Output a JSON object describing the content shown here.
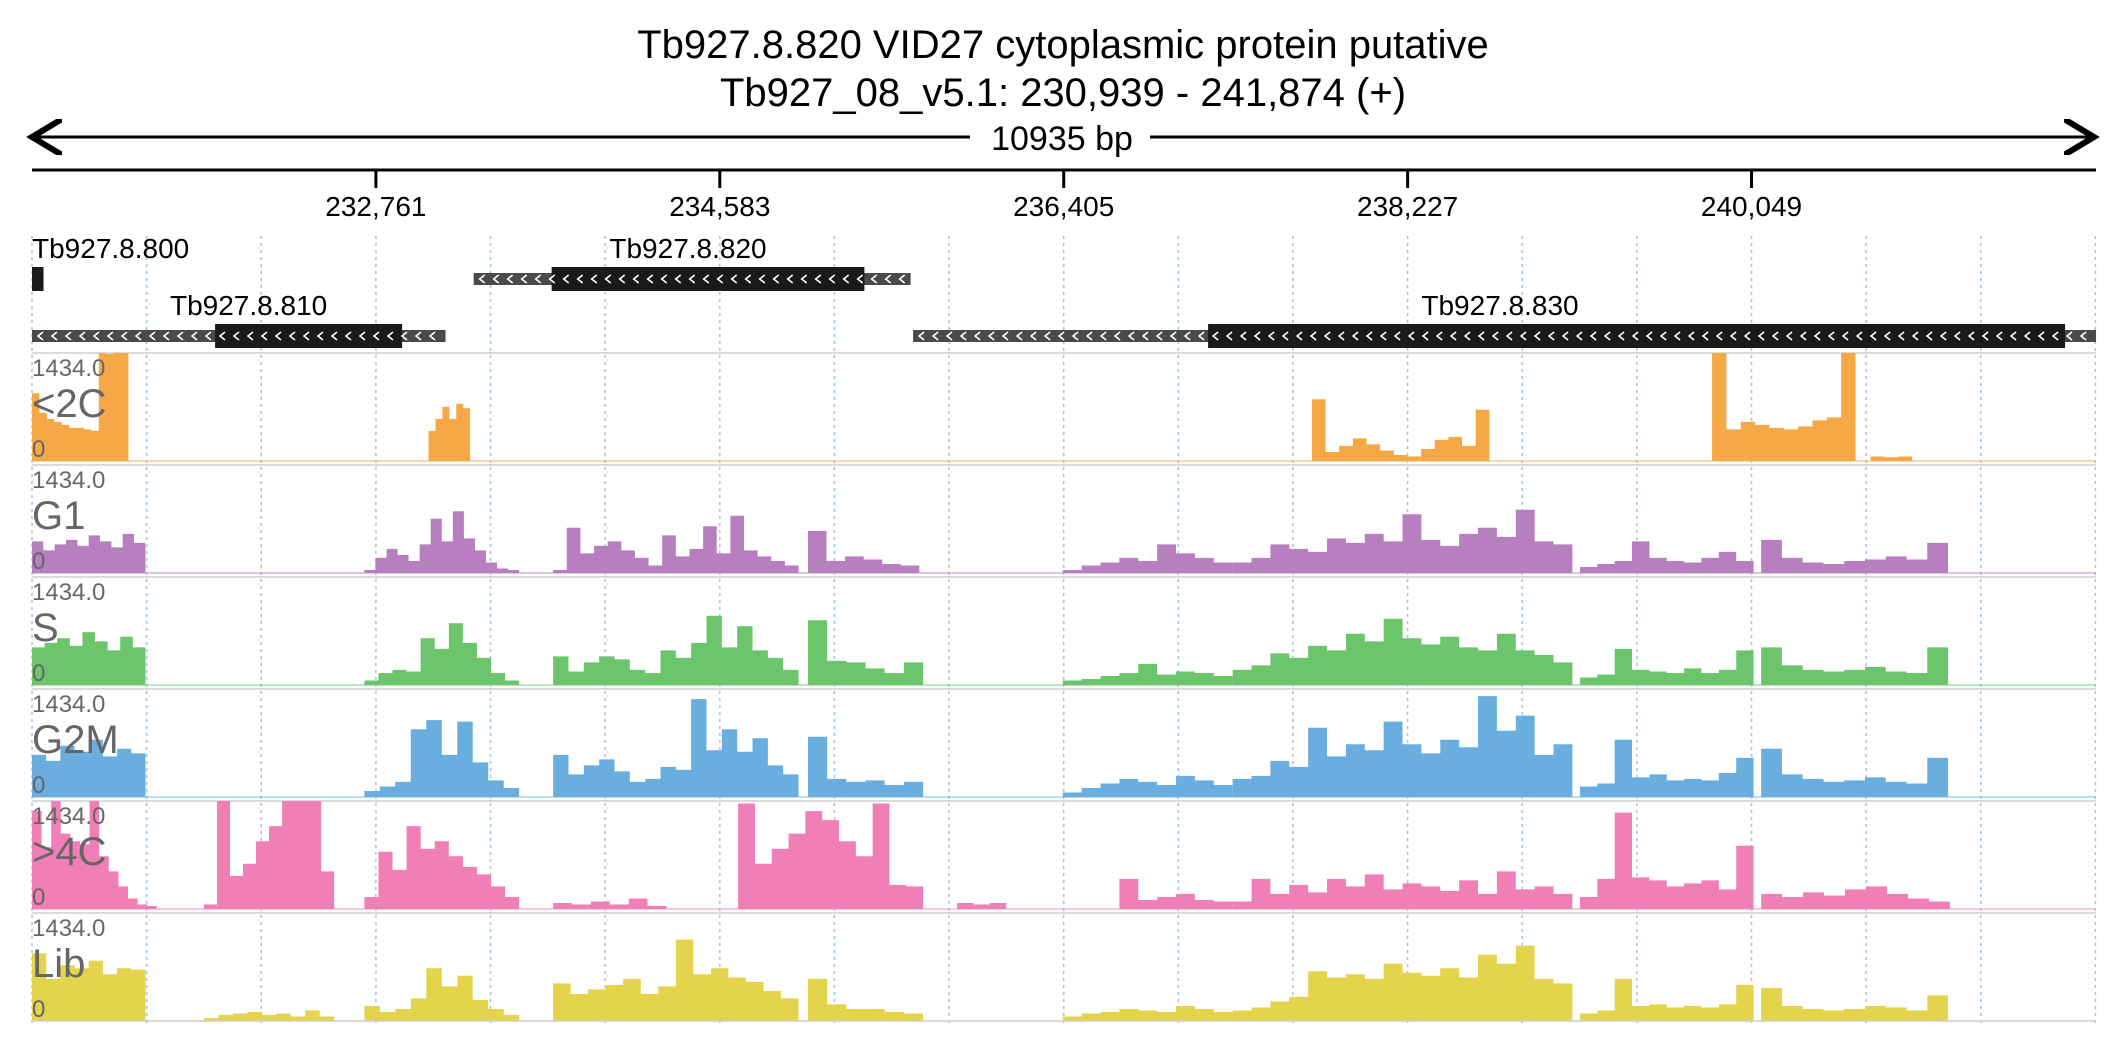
{
  "title_line1": "Tb927.8.820  VID27 cytoplasmic protein  putative",
  "title_line2": "Tb927_08_v5.1: 230,939 - 241,874 (+)",
  "span_label": "10935 bp",
  "colors": {
    "axis": "#000000",
    "grid": "#9fc3e8",
    "gene_utr": "#4a4a4a",
    "gene_cds": "#1a1a1a",
    "track_label": "#666666",
    "separator": "#cfcfcf"
  },
  "chart_data": {
    "type": "area",
    "genome": {
      "start": 230939,
      "end": 241874,
      "strand": "+",
      "ticks": [
        232761,
        234583,
        236405,
        238227,
        240049
      ],
      "tick_labels": [
        "232,761",
        "234,583",
        "236,405",
        "238,227",
        "240,049"
      ]
    },
    "genes": [
      {
        "id": "Tb927.8.800",
        "row": 0,
        "start": 230939,
        "end": 231000,
        "cds_start": 230939,
        "cds_end": 231000,
        "strand": "-"
      },
      {
        "id": "Tb927.8.820",
        "row": 0,
        "start": 233279,
        "end": 235594,
        "cds_start": 233692,
        "cds_end": 235349,
        "strand": "-"
      },
      {
        "id": "Tb927.8.810",
        "row": 1,
        "start": 230939,
        "end": 233130,
        "cds_start": 231909,
        "cds_end": 232900,
        "strand": "-"
      },
      {
        "id": "Tb927.8.830",
        "row": 1,
        "start": 235607,
        "end": 241874,
        "cds_start": 237170,
        "cds_end": 241710,
        "strand": "-"
      }
    ],
    "y_max_label": "1434.0",
    "y_min_label": "0",
    "ylim": [
      0,
      1434
    ],
    "tracks": [
      {
        "name": "<2C",
        "color": "#f5a845",
        "segments": [
          {
            "start": 230939,
            "end": 231450,
            "values": [
              900,
              640,
              560,
              520,
              480,
              440,
              440,
              420,
              400,
              1434,
              1420,
              1434,
              1434
            ]
          },
          {
            "start": 233040,
            "end": 233260,
            "values": [
              400,
              560,
              720,
              560,
              760,
              700
            ]
          },
          {
            "start": 237720,
            "end": 238660,
            "values": [
              820,
              120,
              200,
              300,
              220,
              140,
              80,
              60,
              160,
              280,
              320,
              200,
              680
            ]
          },
          {
            "start": 239840,
            "end": 240600,
            "values": [
              1434,
              420,
              520,
              480,
              440,
              420,
              460,
              540,
              580,
              1434
            ]
          },
          {
            "start": 240680,
            "end": 240900,
            "values": [
              60,
              50,
              60
            ]
          }
        ]
      },
      {
        "name": "G1",
        "color": "#b77fbf",
        "segments": [
          {
            "start": 230939,
            "end": 231540,
            "values": [
              420,
              300,
              380,
              440,
              360,
              500,
              420,
              340,
              520,
              400
            ]
          },
          {
            "start": 232700,
            "end": 233520,
            "values": [
              40,
              200,
              320,
              240,
              160,
              380,
              720,
              420,
              820,
              460,
              300,
              140,
              60,
              40
            ]
          },
          {
            "start": 233700,
            "end": 235000,
            "values": [
              40,
              600,
              260,
              360,
              420,
              300,
              200,
              100,
              500,
              220,
              320,
              620,
              260,
              760,
              300,
              220,
              160,
              100
            ]
          },
          {
            "start": 235050,
            "end": 235640,
            "values": [
              560,
              160,
              220,
              180,
              120,
              100
            ]
          },
          {
            "start": 236400,
            "end": 237300,
            "values": [
              40,
              100,
              140,
              200,
              160,
              380,
              260,
              200,
              140
            ]
          },
          {
            "start": 237300,
            "end": 239100,
            "values": [
              140,
              200,
              380,
              320,
              280,
              460,
              400,
              520,
              420,
              780,
              440,
              360,
              520,
              600,
              480,
              840,
              420,
              380
            ]
          },
          {
            "start": 239140,
            "end": 240060,
            "values": [
              80,
              120,
              160,
              420,
              200,
              160,
              140,
              200,
              280,
              160
            ]
          },
          {
            "start": 240100,
            "end": 241090,
            "values": [
              440,
              200,
              140,
              120,
              160,
              180,
              220,
              180,
              400
            ]
          }
        ]
      },
      {
        "name": "S",
        "color": "#6cc46c",
        "segments": [
          {
            "start": 230939,
            "end": 231540,
            "values": [
              500,
              560,
              620,
              520,
              700,
              580,
              460,
              640,
              500
            ]
          },
          {
            "start": 232700,
            "end": 233520,
            "values": [
              60,
              160,
              200,
              180,
              620,
              480,
              820,
              560,
              360,
              160,
              60
            ]
          },
          {
            "start": 233700,
            "end": 235000,
            "values": [
              380,
              180,
              300,
              380,
              340,
              200,
              160,
              460,
              360,
              560,
              920,
              500,
              780,
              460,
              360,
              200
            ]
          },
          {
            "start": 235050,
            "end": 235660,
            "values": [
              860,
              320,
              300,
              220,
              160,
              300
            ]
          },
          {
            "start": 236400,
            "end": 237300,
            "values": [
              60,
              80,
              120,
              160,
              280,
              140,
              180,
              160,
              120
            ]
          },
          {
            "start": 237300,
            "end": 239100,
            "values": [
              200,
              260,
              420,
              360,
              520,
              460,
              680,
              580,
              880,
              620,
              540,
              640,
              500,
              460,
              680,
              460,
              400,
              300
            ]
          },
          {
            "start": 239140,
            "end": 240060,
            "values": [
              100,
              140,
              480,
              200,
              180,
              160,
              220,
              160,
              200,
              460
            ]
          },
          {
            "start": 240100,
            "end": 241090,
            "values": [
              500,
              260,
              200,
              180,
              200,
              240,
              180,
              160,
              500
            ]
          }
        ]
      },
      {
        "name": "G2M",
        "color": "#6aaee0",
        "segments": [
          {
            "start": 230939,
            "end": 231540,
            "values": [
              560,
              480,
              680,
              600,
              760,
              540,
              640,
              580
            ]
          },
          {
            "start": 232700,
            "end": 233520,
            "values": [
              80,
              140,
              200,
              900,
              1020,
              560,
              1000,
              460,
              220,
              120
            ]
          },
          {
            "start": 233700,
            "end": 235000,
            "values": [
              560,
              300,
              420,
              500,
              340,
              200,
              240,
              400,
              360,
              1300,
              620,
              900,
              600,
              780,
              420,
              300
            ]
          },
          {
            "start": 235050,
            "end": 235660,
            "values": [
              800,
              240,
              200,
              220,
              160,
              200
            ]
          },
          {
            "start": 236400,
            "end": 237300,
            "values": [
              60,
              120,
              180,
              240,
              200,
              160,
              280,
              220,
              160
            ]
          },
          {
            "start": 237300,
            "end": 239100,
            "values": [
              240,
              280,
              480,
              400,
              920,
              540,
              700,
              620,
              1000,
              700,
              580,
              760,
              660,
              1340,
              880,
              1080,
              560,
              700
            ]
          },
          {
            "start": 239140,
            "end": 240060,
            "values": [
              140,
              180,
              760,
              260,
              300,
              220,
              240,
              220,
              320,
              520
            ]
          },
          {
            "start": 240100,
            "end": 241090,
            "values": [
              640,
              300,
              240,
              200,
              220,
              260,
              200,
              180,
              520
            ]
          }
        ]
      },
      {
        "name": ">4C",
        "color": "#f07fb7",
        "segments": [
          {
            "start": 230939,
            "end": 231600,
            "values": [
              1300,
              820,
              1434,
              1000,
              900,
              860,
              1434,
              700,
              500,
              300,
              140,
              60,
              40
            ]
          },
          {
            "start": 231850,
            "end": 232540,
            "values": [
              60,
              1434,
              440,
              600,
              900,
              1100,
              1434,
              1434,
              1434,
              500
            ]
          },
          {
            "start": 232700,
            "end": 233520,
            "values": [
              160,
              760,
              520,
              1100,
              800,
              900,
              700,
              560,
              460,
              300,
              160
            ]
          },
          {
            "start": 233700,
            "end": 234300,
            "values": [
              80,
              60,
              100,
              60,
              140,
              40
            ]
          },
          {
            "start": 234680,
            "end": 235660,
            "values": [
              1400,
              600,
              800,
              1000,
              1300,
              1180,
              900,
              700,
              1400,
              320,
              300
            ]
          },
          {
            "start": 235840,
            "end": 236100,
            "values": [
              80,
              60,
              80
            ]
          },
          {
            "start": 236700,
            "end": 237300,
            "values": [
              400,
              120,
              160,
              200,
              120,
              100
            ]
          },
          {
            "start": 237300,
            "end": 239100,
            "values": [
              100,
              400,
              200,
              320,
              220,
              400,
              300,
              460,
              260,
              340,
              300,
              240,
              380,
              200,
              500,
              260,
              300,
              200
            ]
          },
          {
            "start": 239140,
            "end": 240060,
            "values": [
              160,
              400,
              1280,
              420,
              380,
              300,
              340,
              380,
              260,
              840
            ]
          },
          {
            "start": 240100,
            "end": 241100,
            "values": [
              200,
              160,
              220,
              180,
              260,
              300,
              200,
              140,
              100
            ]
          }
        ]
      },
      {
        "name": "Lib",
        "color": "#e3d44c",
        "segments": [
          {
            "start": 230939,
            "end": 231540,
            "values": [
              900,
              560,
              740,
              700,
              800,
              620,
              700,
              680
            ]
          },
          {
            "start": 231850,
            "end": 232540,
            "values": [
              40,
              80,
              100,
              120,
              80,
              100,
              60,
              140,
              60
            ]
          },
          {
            "start": 232700,
            "end": 233520,
            "values": [
              200,
              120,
              160,
              300,
              700,
              460,
              600,
              280,
              160,
              80
            ]
          },
          {
            "start": 233700,
            "end": 235000,
            "values": [
              500,
              360,
              420,
              480,
              560,
              360,
              460,
              1080,
              620,
              700,
              580,
              520,
              400,
              300
            ]
          },
          {
            "start": 235050,
            "end": 235660,
            "values": [
              560,
              220,
              160,
              160,
              120,
              100
            ]
          },
          {
            "start": 236400,
            "end": 237300,
            "values": [
              60,
              100,
              120,
              160,
              140,
              120,
              200,
              160,
              120
            ]
          },
          {
            "start": 237300,
            "end": 239100,
            "values": [
              140,
              180,
              260,
              320,
              660,
              580,
              620,
              560,
              760,
              640,
              600,
              700,
              580,
              880,
              760,
              1000,
              560,
              500
            ]
          },
          {
            "start": 239140,
            "end": 240060,
            "values": [
              100,
              140,
              560,
              200,
              220,
              180,
              200,
              180,
              220,
              480
            ]
          },
          {
            "start": 240100,
            "end": 241090,
            "values": [
              440,
              200,
              160,
              140,
              160,
              200,
              180,
              140,
              340
            ]
          }
        ]
      }
    ]
  }
}
